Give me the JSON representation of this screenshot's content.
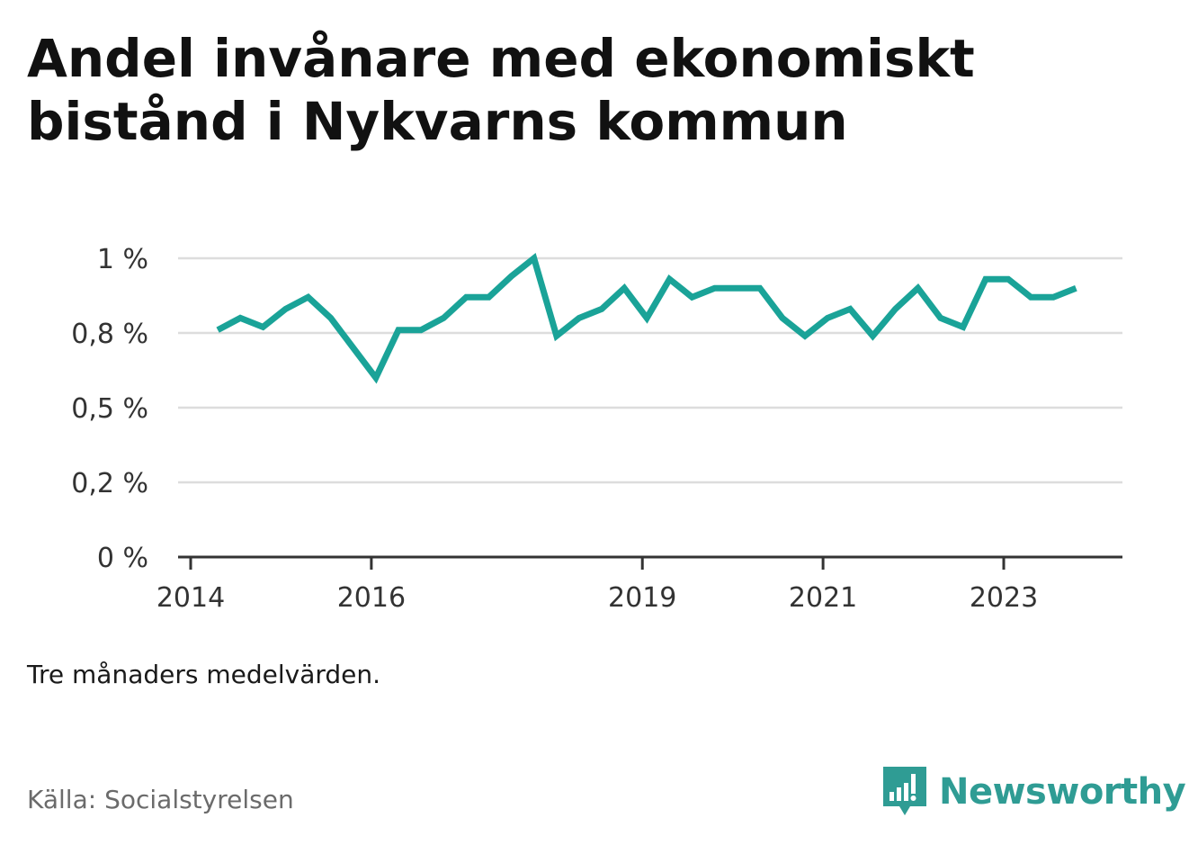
{
  "title": "Andel invånare med ekonomiskt bistånd i Nykvarns kommun",
  "note": "Tre månaders medelvärden.",
  "source": "Källa: Socialstyrelsen",
  "logo": {
    "text": "Newsworthy",
    "icon": "newsworthy-logo-icon"
  },
  "colors": {
    "line": "#1aa398",
    "grid": "#dddddd",
    "axis": "#333333",
    "logo": "#2f9c94"
  },
  "chart_data": {
    "type": "line",
    "title": "Andel invånare med ekonomiskt bistånd i Nykvarns kommun",
    "xlabel": "",
    "ylabel": "",
    "ylim": [
      0,
      1
    ],
    "xlim": [
      2014,
      2024.3
    ],
    "grid": true,
    "legend": "none",
    "y_ticks": [
      {
        "value": 0,
        "label": "0 %"
      },
      {
        "value": 0.25,
        "label": "0,2 %"
      },
      {
        "value": 0.5,
        "label": "0,5 %"
      },
      {
        "value": 0.75,
        "label": "0,8 %"
      },
      {
        "value": 1,
        "label": "1 %"
      }
    ],
    "x_ticks": [
      {
        "value": 2014,
        "label": "2014"
      },
      {
        "value": 2016,
        "label": "2016"
      },
      {
        "value": 2019,
        "label": "2019"
      },
      {
        "value": 2021,
        "label": "2021"
      },
      {
        "value": 2023,
        "label": "2023"
      }
    ],
    "series": [
      {
        "x": [
          2014.3,
          2014.55,
          2014.8,
          2015.05,
          2015.3,
          2015.55,
          2015.8,
          2016.05,
          2016.3,
          2016.55,
          2016.8,
          2017.05,
          2017.3,
          2017.55,
          2017.8,
          2018.05,
          2018.3,
          2018.55,
          2018.8,
          2019.05,
          2019.3,
          2019.55,
          2019.8,
          2020.05,
          2020.3,
          2020.55,
          2020.8,
          2021.05,
          2021.3,
          2021.55,
          2021.8,
          2022.05,
          2022.3,
          2022.55,
          2022.8,
          2023.05,
          2023.3,
          2023.55,
          2023.8
        ],
        "values": [
          0.76,
          0.8,
          0.77,
          0.83,
          0.87,
          0.8,
          0.7,
          0.6,
          0.76,
          0.76,
          0.8,
          0.87,
          0.87,
          0.94,
          1.0,
          0.74,
          0.8,
          0.83,
          0.9,
          0.8,
          0.93,
          0.87,
          0.9,
          0.9,
          0.9,
          0.8,
          0.74,
          0.8,
          0.83,
          0.74,
          0.83,
          0.9,
          0.8,
          0.77,
          0.93,
          0.93,
          0.87,
          0.87,
          0.9
        ]
      }
    ]
  }
}
